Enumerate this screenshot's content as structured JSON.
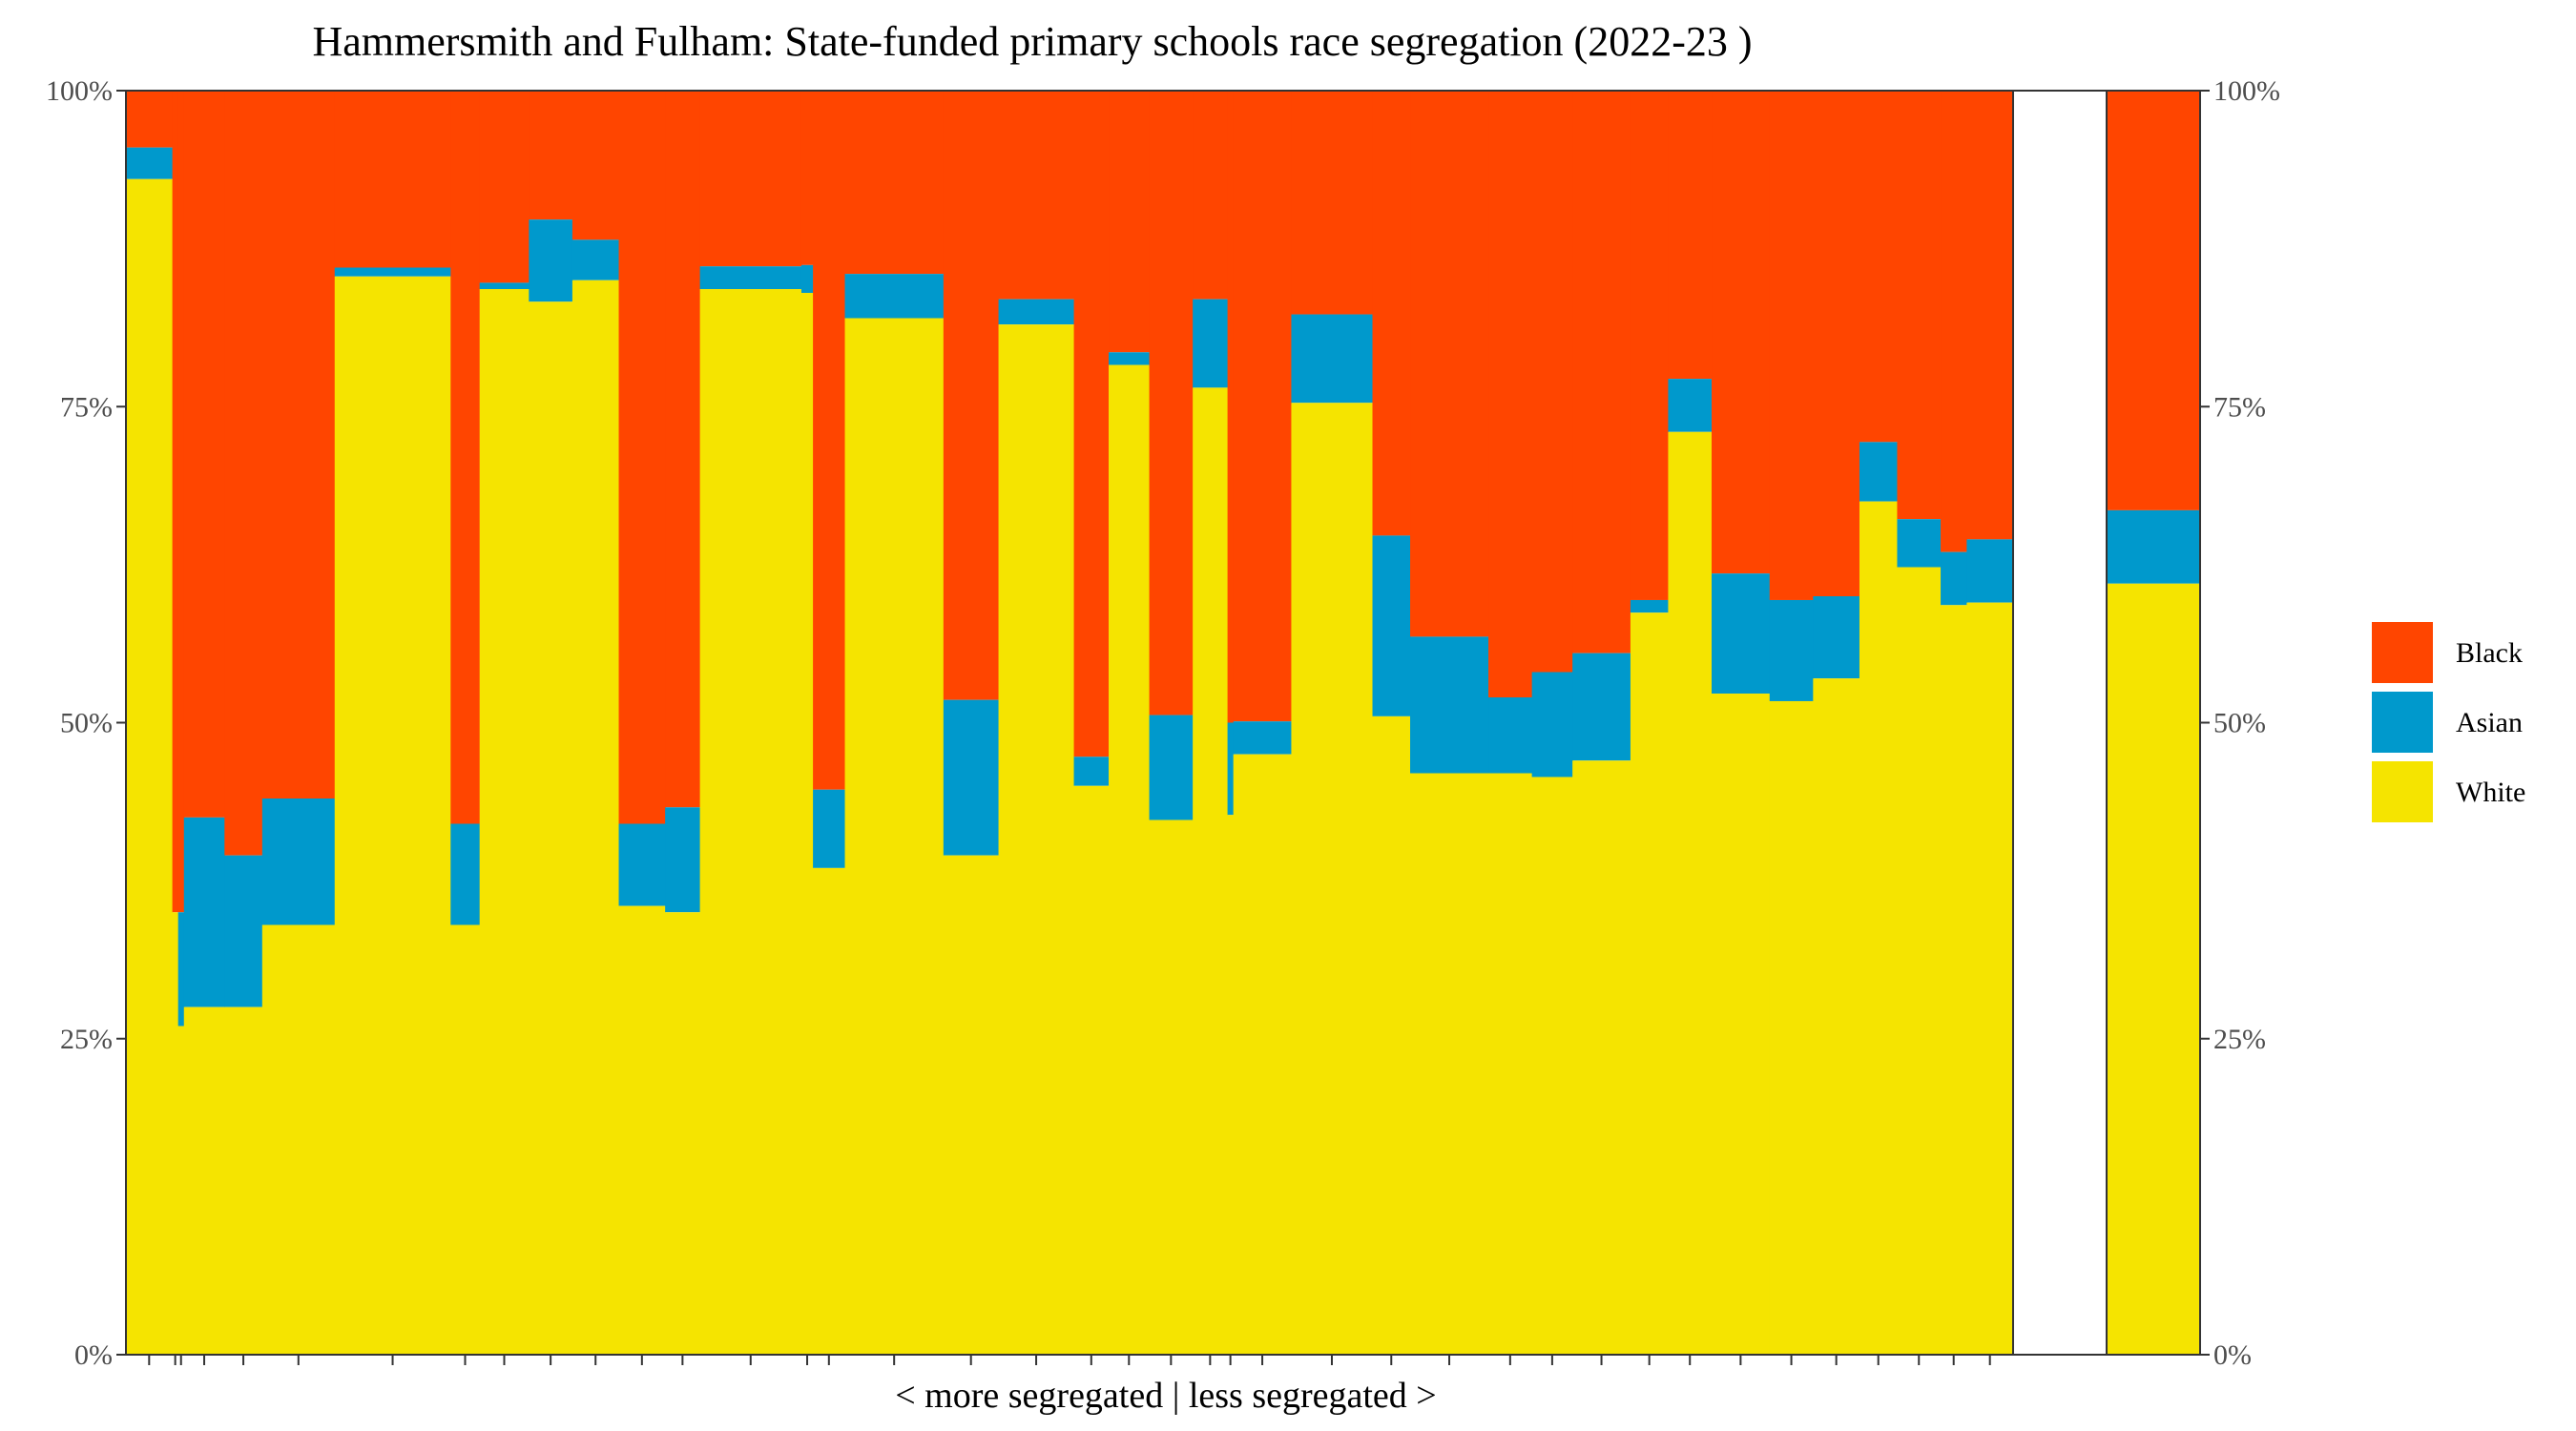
{
  "chart_data": {
    "type": "bar",
    "stacked": true,
    "variable_width": true,
    "title": "Hammersmith and Fulham: State-funded primary schools race segregation (2022-23 )",
    "xlabel": "< more segregated | less segregated >",
    "ylabel": "",
    "ylim": [
      0,
      100
    ],
    "y_ticks": [
      "0%",
      "25%",
      "50%",
      "75%",
      "100%"
    ],
    "grid": false,
    "legend_position": "right",
    "colors": {
      "Black": "#FF4500",
      "Asian": "#0099CC",
      "White": "#F5E400"
    },
    "legend": [
      "Black",
      "Asian",
      "White"
    ],
    "series_order": [
      "White",
      "Asian",
      "Black"
    ],
    "schools": [
      {
        "width": 1.6,
        "white": 93.0,
        "asian": 2.5
      },
      {
        "width": 0.2,
        "white": 35.0,
        "asian": 0.0
      },
      {
        "width": 0.2,
        "white": 26.0,
        "asian": 9.0
      },
      {
        "width": 1.4,
        "white": 27.5,
        "asian": 15.0
      },
      {
        "width": 1.3,
        "white": 27.5,
        "asian": 12.0
      },
      {
        "width": 2.5,
        "white": 34.0,
        "asian": 10.0
      },
      {
        "width": 4.0,
        "white": 85.3,
        "asian": 0.7
      },
      {
        "width": 1.0,
        "white": 34.0,
        "asian": 8.0
      },
      {
        "width": 1.7,
        "white": 84.3,
        "asian": 0.5
      },
      {
        "width": 1.5,
        "white": 83.3,
        "asian": 6.5
      },
      {
        "width": 1.6,
        "white": 85.0,
        "asian": 3.2
      },
      {
        "width": 1.6,
        "white": 35.5,
        "asian": 6.5
      },
      {
        "width": 1.2,
        "white": 35.0,
        "asian": 8.3
      },
      {
        "width": 3.5,
        "white": 84.3,
        "asian": 1.8
      },
      {
        "width": 0.4,
        "white": 84.0,
        "asian": 2.2
      },
      {
        "width": 1.1,
        "white": 38.5,
        "asian": 6.2
      },
      {
        "width": 3.4,
        "white": 82.0,
        "asian": 3.5
      },
      {
        "width": 1.9,
        "white": 39.5,
        "asian": 12.3
      },
      {
        "width": 2.6,
        "white": 81.5,
        "asian": 2.0
      },
      {
        "width": 1.2,
        "white": 45.0,
        "asian": 2.3
      },
      {
        "width": 1.4,
        "white": 78.3,
        "asian": 1.0
      },
      {
        "width": 1.5,
        "white": 42.3,
        "asian": 8.3
      },
      {
        "width": 1.2,
        "white": 76.5,
        "asian": 7.0
      },
      {
        "width": 0.2,
        "white": 42.7,
        "asian": 7.3
      },
      {
        "width": 2.0,
        "white": 47.5,
        "asian": 2.6
      },
      {
        "width": 2.8,
        "white": 75.3,
        "asian": 7.0
      },
      {
        "width": 1.3,
        "white": 50.5,
        "asian": 14.3
      },
      {
        "width": 2.7,
        "white": 46.0,
        "asian": 10.8
      },
      {
        "width": 1.5,
        "white": 46.0,
        "asian": 6.0
      },
      {
        "width": 1.4,
        "white": 45.7,
        "asian": 8.3
      },
      {
        "width": 2.0,
        "white": 47.0,
        "asian": 8.5
      },
      {
        "width": 1.3,
        "white": 58.7,
        "asian": 1.0
      },
      {
        "width": 1.5,
        "white": 73.0,
        "asian": 4.2
      },
      {
        "width": 2.0,
        "white": 52.3,
        "asian": 9.5
      },
      {
        "width": 1.5,
        "white": 51.7,
        "asian": 8.0
      },
      {
        "width": 1.6,
        "white": 53.5,
        "asian": 6.5
      },
      {
        "width": 1.3,
        "white": 67.5,
        "asian": 4.7
      },
      {
        "width": 1.5,
        "white": 62.3,
        "asian": 3.8
      },
      {
        "width": 0.9,
        "white": 59.3,
        "asian": 4.2
      },
      {
        "width": 1.6,
        "white": 59.5,
        "asian": 5.0
      }
    ],
    "local_authority": {
      "white": 61.0,
      "asian": 5.8
    }
  }
}
